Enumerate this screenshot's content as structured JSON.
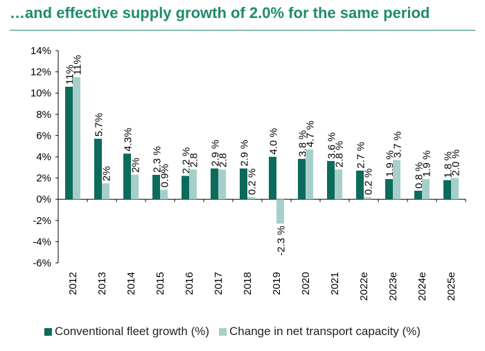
{
  "page": {
    "title": "…and effective supply growth of 2.0% for the same period"
  },
  "colors": {
    "title": "#1f8a6e",
    "series1": "#0d6b5c",
    "series2": "#a6cfcb",
    "axis": "#000000"
  },
  "chart_data": {
    "type": "bar",
    "title": "…and effective supply growth of 2.0% for the same period",
    "categories": [
      "2012",
      "2013",
      "2014",
      "2015",
      "2016",
      "2017",
      "2018",
      "2019",
      "2020",
      "2021",
      "2022e",
      "2023e",
      "2024e",
      "2025e"
    ],
    "series": [
      {
        "name": "Conventional fleet growth (%)",
        "values": [
          10.6,
          5.7,
          4.3,
          2.3,
          2.2,
          2.9,
          2.9,
          4.0,
          3.8,
          3.6,
          2.7,
          1.9,
          0.8,
          1.8
        ],
        "labels": [
          "11%",
          "5.7%",
          "4.3%",
          "2.3 %",
          "2.2 %",
          "2.9 %",
          "2.9 %",
          "4.0 %",
          "3.8 %",
          "3.6 %",
          "2.7 %",
          "1.9 %",
          "0.8 %",
          "1.8 %"
        ]
      },
      {
        "name": "Change in net transport capacity (%)",
        "values": [
          11.5,
          1.5,
          2.3,
          0.9,
          2.8,
          2.8,
          0.2,
          -2.3,
          4.7,
          2.8,
          0.2,
          3.7,
          1.9,
          2.0
        ],
        "labels": [
          "11%",
          "2%",
          "2%",
          "0.9%",
          "2.8",
          "2.8",
          "0.2 %",
          "-2.3 %",
          "4.7 %",
          "2.8 %",
          "0.2 %",
          "3.7 %",
          "1.9 %",
          "2.0 %"
        ]
      }
    ],
    "yticks": [
      "14%",
      "12%",
      "10%",
      "8%",
      "6%",
      "4%",
      "2%",
      "0%",
      "-2%",
      "-4%",
      "-6%"
    ],
    "ylim": [
      -6,
      14
    ],
    "xlabel": "",
    "ylabel": "",
    "grid": false,
    "legend": "bottom"
  }
}
